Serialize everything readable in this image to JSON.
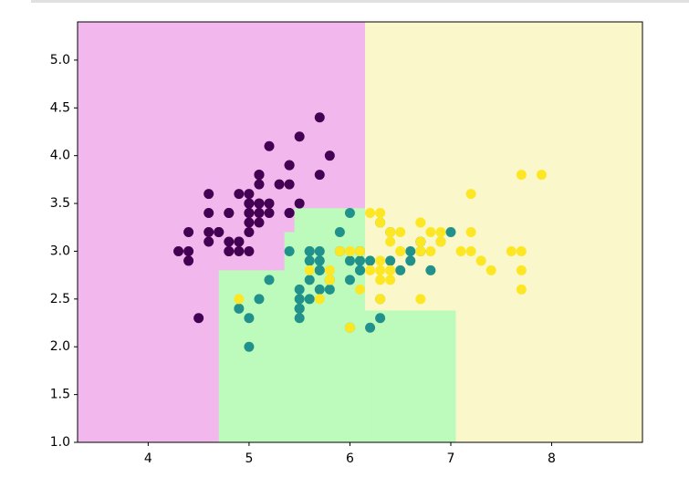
{
  "chart_data": {
    "type": "scatter",
    "xlim": [
      3.3,
      8.9
    ],
    "ylim": [
      1.0,
      5.4
    ],
    "xticks": [
      4,
      5,
      6,
      7,
      8
    ],
    "yticks": [
      {
        "value": 1.0,
        "label": "1.0"
      },
      {
        "value": 1.5,
        "label": "1.5"
      },
      {
        "value": 2.0,
        "label": "2.0"
      },
      {
        "value": 2.5,
        "label": "2.5"
      },
      {
        "value": 3.0,
        "label": "3.0"
      },
      {
        "value": 3.5,
        "label": "3.5"
      },
      {
        "value": 4.0,
        "label": "4.0"
      },
      {
        "value": 4.5,
        "label": "4.5"
      },
      {
        "value": 5.0,
        "label": "5.0"
      }
    ],
    "regions": [
      {
        "color": "#f2b8ee",
        "x": [
          3.3,
          6.15
        ],
        "y": [
          1.0,
          5.4
        ]
      },
      {
        "color": "#faf7cb",
        "x": [
          6.15,
          8.9
        ],
        "y": [
          1.0,
          5.4
        ]
      },
      {
        "color": "#bcfbbb",
        "x": [
          4.7,
          6.15
        ],
        "y": [
          1.0,
          2.8
        ]
      },
      {
        "color": "#bcfbbb",
        "x": [
          5.35,
          6.15
        ],
        "y": [
          2.8,
          3.2
        ]
      },
      {
        "color": "#bcfbbb",
        "x": [
          5.45,
          6.15
        ],
        "y": [
          3.2,
          3.45
        ]
      },
      {
        "color": "#bcfbbb",
        "x": [
          6.15,
          7.05
        ],
        "y": [
          1.0,
          2.38
        ]
      }
    ],
    "series": [
      {
        "color": "#440154",
        "x": [
          5.1,
          4.9,
          4.7,
          4.6,
          5.0,
          5.4,
          4.6,
          5.0,
          4.4,
          4.9,
          5.4,
          4.8,
          4.8,
          4.3,
          5.8,
          5.7,
          5.4,
          5.1,
          5.7,
          5.1,
          5.4,
          5.1,
          4.6,
          5.1,
          4.8,
          5.0,
          5.0,
          5.2,
          5.2,
          4.7,
          4.8,
          5.4,
          5.2,
          5.5,
          4.9,
          5.0,
          5.5,
          4.9,
          4.4,
          5.1,
          5.0,
          4.5,
          4.4,
          5.0,
          5.1,
          4.8,
          5.1,
          4.6,
          5.3,
          5.0
        ],
        "y": [
          3.5,
          3.0,
          3.2,
          3.1,
          3.6,
          3.9,
          3.4,
          3.4,
          2.9,
          3.1,
          3.7,
          3.4,
          3.0,
          3.0,
          4.0,
          4.4,
          3.9,
          3.5,
          3.8,
          3.8,
          3.4,
          3.7,
          3.6,
          3.3,
          3.4,
          3.0,
          3.4,
          3.5,
          3.4,
          3.2,
          3.1,
          3.4,
          4.1,
          4.2,
          3.1,
          3.2,
          3.5,
          3.6,
          3.0,
          3.4,
          3.5,
          2.3,
          3.2,
          3.5,
          3.8,
          3.0,
          3.8,
          3.2,
          3.7,
          3.3
        ]
      },
      {
        "color": "#21918c",
        "x": [
          7.0,
          6.4,
          6.9,
          5.5,
          6.5,
          5.7,
          6.3,
          4.9,
          6.6,
          5.2,
          5.0,
          5.9,
          6.0,
          6.1,
          5.6,
          6.7,
          5.6,
          5.8,
          6.2,
          5.6,
          5.9,
          6.1,
          6.3,
          6.1,
          6.4,
          6.6,
          6.8,
          6.7,
          6.0,
          5.7,
          5.5,
          5.5,
          5.8,
          6.0,
          5.4,
          6.0,
          6.7,
          6.3,
          5.6,
          5.5,
          5.5,
          6.1,
          5.8,
          5.0,
          5.6,
          5.7,
          5.7,
          6.2,
          5.1,
          5.7
        ],
        "y": [
          3.2,
          3.2,
          3.1,
          2.3,
          2.8,
          2.8,
          3.3,
          2.4,
          2.9,
          2.7,
          2.0,
          3.0,
          2.2,
          2.9,
          2.9,
          3.1,
          3.0,
          2.7,
          2.2,
          2.5,
          3.2,
          2.8,
          2.5,
          2.8,
          2.9,
          3.0,
          2.8,
          3.0,
          2.9,
          2.6,
          2.4,
          2.4,
          2.7,
          2.7,
          3.0,
          3.4,
          3.1,
          2.3,
          3.0,
          2.5,
          2.6,
          3.0,
          2.6,
          2.3,
          2.7,
          3.0,
          2.9,
          2.9,
          2.5,
          2.8
        ]
      },
      {
        "color": "#fde725",
        "x": [
          6.3,
          5.8,
          7.1,
          6.3,
          6.5,
          7.6,
          4.9,
          7.3,
          6.7,
          7.2,
          6.5,
          6.4,
          6.8,
          5.7,
          5.8,
          6.4,
          6.5,
          7.7,
          7.7,
          6.0,
          6.9,
          5.6,
          7.7,
          6.3,
          6.7,
          7.2,
          6.2,
          6.1,
          6.4,
          7.2,
          7.4,
          7.9,
          6.4,
          6.3,
          6.1,
          7.7,
          6.3,
          6.4,
          6.0,
          6.9,
          6.7,
          6.9,
          5.8,
          6.8,
          6.7,
          6.7,
          6.3,
          6.5,
          6.2,
          5.9
        ],
        "y": [
          3.3,
          2.7,
          3.0,
          2.9,
          3.0,
          3.0,
          2.5,
          2.9,
          2.5,
          3.6,
          3.2,
          2.7,
          3.0,
          2.5,
          2.8,
          3.2,
          3.0,
          3.8,
          2.6,
          2.2,
          3.2,
          2.8,
          2.8,
          2.7,
          3.3,
          3.2,
          2.8,
          3.0,
          2.8,
          3.0,
          2.8,
          3.8,
          2.8,
          2.8,
          2.6,
          3.0,
          3.4,
          3.1,
          3.0,
          3.1,
          3.1,
          3.1,
          2.7,
          3.2,
          3.3,
          3.0,
          2.5,
          3.0,
          3.4,
          3.0
        ]
      }
    ]
  }
}
